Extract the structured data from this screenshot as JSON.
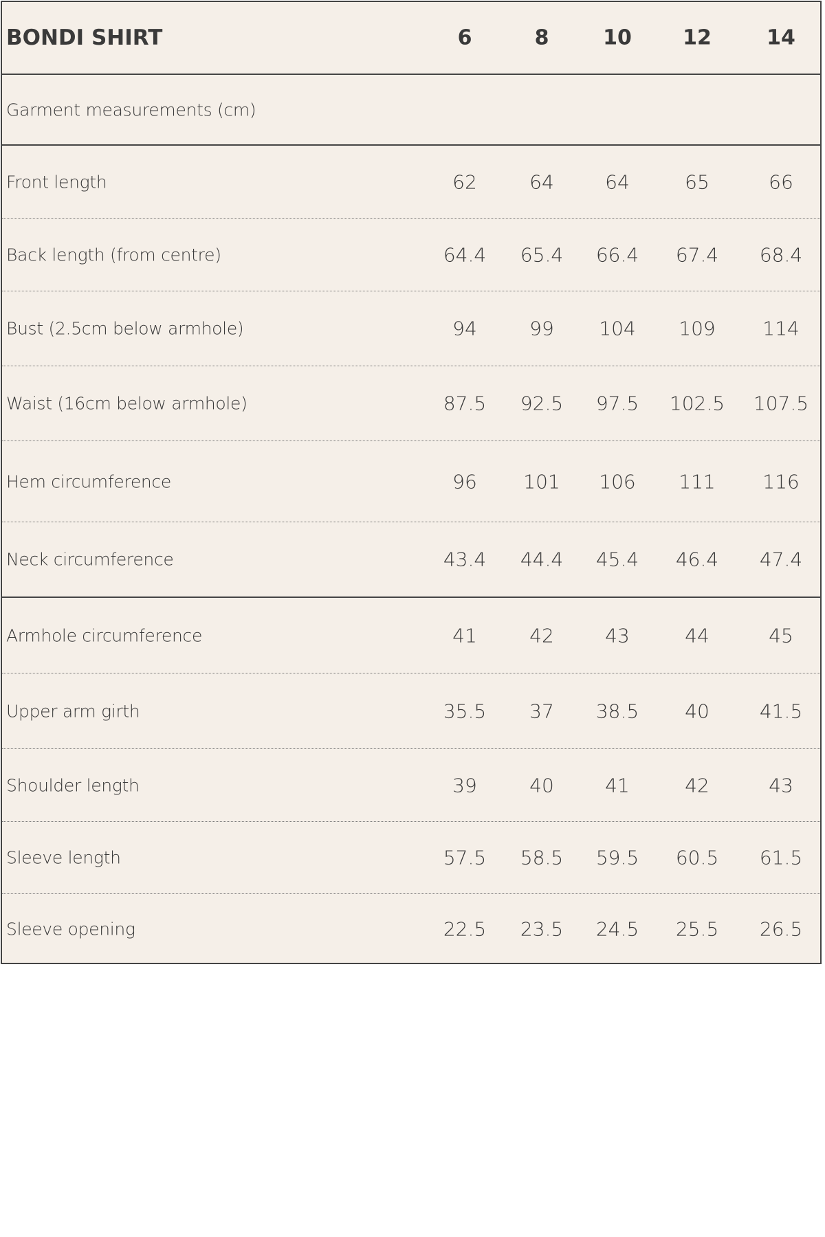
{
  "table": {
    "title": "BONDI SHIRT",
    "sizes": [
      "6",
      "8",
      "10",
      "12",
      "14"
    ],
    "section": "Garment measurements (cm)",
    "rows": [
      {
        "label": "Front length",
        "values": [
          62,
          64,
          64,
          65,
          66
        ]
      },
      {
        "label": "Back length (from centre)",
        "values": [
          64.4,
          65.4,
          66.4,
          67.4,
          68.4
        ]
      },
      {
        "label": "Bust (2.5cm below armhole)",
        "values": [
          94,
          99,
          104,
          109,
          114
        ]
      },
      {
        "label": "Waist (16cm below armhole)",
        "values": [
          87.5,
          92.5,
          97.5,
          102.5,
          107.5
        ]
      },
      {
        "label": "Hem circumference",
        "values": [
          96,
          101,
          106,
          111,
          116
        ]
      },
      {
        "label": "Neck circumference",
        "values": [
          43.4,
          44.4,
          45.4,
          46.4,
          47.4
        ]
      },
      {
        "label": "Armhole circumference",
        "values": [
          41,
          42,
          43,
          44,
          45
        ]
      },
      {
        "label": "Upper arm girth",
        "values": [
          35.5,
          37,
          38.5,
          40,
          41.5
        ]
      },
      {
        "label": "Shoulder length",
        "values": [
          39,
          40,
          41,
          42,
          43
        ]
      },
      {
        "label": "Sleeve length",
        "values": [
          57.5,
          58.5,
          59.5,
          60.5,
          61.5
        ]
      },
      {
        "label": "Sleeve opening",
        "values": [
          22.5,
          23.5,
          24.5,
          25.5,
          26.5
        ]
      }
    ]
  }
}
